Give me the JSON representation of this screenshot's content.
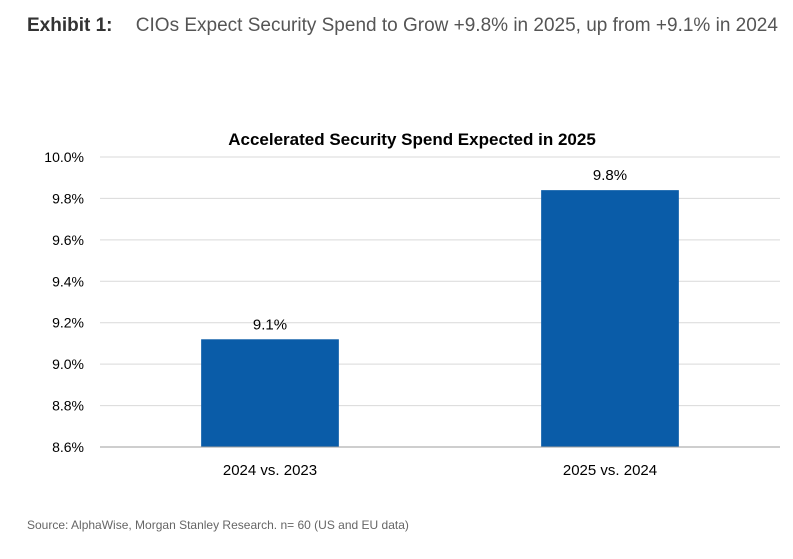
{
  "header": {
    "exhibit_label": "Exhibit 1:",
    "exhibit_title": "CIOs Expect Security Spend to Grow +9.8% in 2025, up from +9.1% in 2024"
  },
  "chart_data": {
    "type": "bar",
    "title": "Accelerated Security Spend Expected in 2025",
    "xlabel": "",
    "ylabel": "",
    "categories": [
      "2024 vs. 2023",
      "2025 vs. 2024"
    ],
    "values": [
      9.12,
      9.84
    ],
    "data_labels": [
      "9.1%",
      "9.8%"
    ],
    "ylim": [
      8.6,
      10.0
    ],
    "yticks": [
      8.6,
      8.8,
      9.0,
      9.2,
      9.4,
      9.6,
      9.8,
      10.0
    ],
    "ytick_labels": [
      "8.6%",
      "8.8%",
      "9.0%",
      "9.2%",
      "9.4%",
      "9.6%",
      "9.8%",
      "10.0%"
    ],
    "grid": true,
    "legend": "none",
    "bar_color": "#0A5CA8"
  },
  "footer": {
    "source": "Source: AlphaWise, Morgan Stanley Research. n= 60 (US and EU data)"
  }
}
